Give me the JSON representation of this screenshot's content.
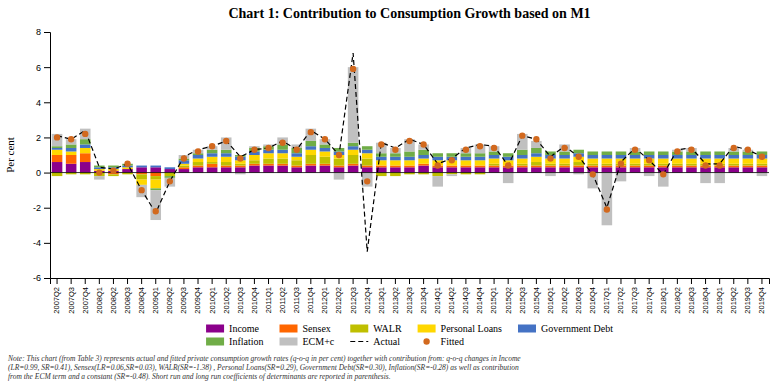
{
  "chart_data": {
    "type": "bar",
    "title": "Chart 1: Contribution to Consumption Growth based on M1",
    "ylabel": "Per cent",
    "ylim": [
      -6,
      8
    ],
    "yticks": [
      -6,
      -4,
      -2,
      0,
      2,
      4,
      6,
      8
    ],
    "stacked": true,
    "grid": false,
    "legend": "bottom",
    "categories": [
      "2007Q2",
      "2007Q3",
      "2007Q4",
      "2008Q1",
      "2008Q2",
      "2008Q3",
      "2008Q4",
      "2009Q1",
      "2009Q2",
      "2009Q3",
      "2009Q4",
      "2010Q1",
      "2010Q2",
      "2010Q3",
      "2010Q4",
      "2011Q1",
      "2011Q2",
      "2011Q3",
      "2011Q4",
      "2012Q1",
      "2012Q2",
      "2012Q3",
      "2012Q4",
      "2013Q1",
      "2013Q2",
      "2013Q3",
      "2013Q4",
      "2014Q1",
      "2014Q2",
      "2014Q3",
      "2014Q4",
      "2015Q1",
      "2015Q2",
      "2015Q3",
      "2015Q4",
      "2016Q1",
      "2016Q2",
      "2016Q3",
      "2016Q4",
      "2017Q1",
      "2017Q2",
      "2017Q3",
      "2017Q4",
      "2018Q1",
      "2018Q2",
      "2018Q3",
      "2018Q4",
      "2019Q1",
      "2019Q2",
      "2019Q3",
      "2019Q4"
    ],
    "series": [
      {
        "name": "Income",
        "type": "bar",
        "color": "#8B008B",
        "values": [
          0.6,
          0.5,
          0.6,
          0.1,
          0.1,
          0.2,
          0.3,
          0.3,
          0.2,
          0.2,
          0.3,
          0.3,
          0.3,
          0.3,
          0.4,
          0.4,
          0.4,
          0.3,
          0.4,
          0.4,
          0.3,
          0.4,
          0.3,
          0.3,
          0.3,
          0.3,
          0.4,
          0.3,
          0.3,
          0.3,
          0.3,
          0.3,
          0.3,
          0.3,
          0.3,
          0.3,
          0.3,
          0.3,
          0.3,
          0.3,
          0.3,
          0.3,
          0.3,
          0.3,
          0.3,
          0.3,
          0.3,
          0.3,
          0.3,
          0.3,
          0.3
        ]
      },
      {
        "name": "Sensex",
        "type": "bar",
        "color": "#FF6600",
        "values": [
          0.4,
          0.5,
          0.5,
          0.0,
          -0.1,
          0.0,
          -0.1,
          -0.2,
          0.0,
          0.1,
          0.1,
          0.2,
          0.1,
          0.1,
          0.1,
          0.1,
          0.1,
          0.1,
          0.1,
          0.1,
          0.1,
          0.1,
          0.1,
          0.1,
          0.1,
          0.1,
          0.1,
          0.1,
          0.1,
          0.1,
          0.1,
          0.1,
          0.1,
          0.1,
          0.1,
          0.1,
          0.1,
          0.1,
          0.1,
          0.1,
          0.1,
          0.1,
          0.1,
          0.1,
          0.1,
          0.1,
          0.1,
          0.1,
          0.1,
          0.1,
          0.1
        ]
      },
      {
        "name": "WALR",
        "type": "bar",
        "color": "#BFBF00",
        "values": [
          -0.2,
          -0.1,
          -0.1,
          -0.2,
          -0.1,
          -0.1,
          -0.3,
          -0.2,
          -0.2,
          0.1,
          0.2,
          0.1,
          0.2,
          0.1,
          0.2,
          0.3,
          0.3,
          0.3,
          0.5,
          0.4,
          0.4,
          0.5,
          0.4,
          -0.2,
          -0.2,
          -0.1,
          -0.1,
          -0.2,
          -0.1,
          -0.1,
          -0.1,
          0.1,
          0.0,
          0.1,
          0.2,
          0.1,
          0.1,
          0.2,
          0.1,
          0.1,
          0.1,
          0.1,
          0.1,
          0.1,
          0.1,
          0.1,
          0.1,
          0.1,
          0.1,
          0.1,
          0.1
        ]
      },
      {
        "name": "Personal Loans",
        "type": "bar",
        "color": "#FFD700",
        "values": [
          0.3,
          0.2,
          0.3,
          0.1,
          0.1,
          0.1,
          -0.3,
          -0.5,
          0.0,
          0.1,
          0.2,
          0.3,
          0.3,
          0.2,
          0.3,
          0.3,
          0.3,
          0.2,
          0.3,
          0.3,
          0.2,
          0.3,
          0.3,
          0.3,
          0.3,
          0.3,
          0.3,
          0.3,
          0.3,
          0.3,
          0.3,
          0.3,
          0.3,
          0.3,
          0.3,
          0.3,
          0.3,
          0.3,
          0.3,
          0.3,
          0.3,
          0.3,
          0.3,
          0.3,
          0.3,
          0.3,
          0.3,
          0.3,
          0.3,
          0.3,
          0.3
        ]
      },
      {
        "name": "Government Debt",
        "type": "bar",
        "color": "#4472C4",
        "values": [
          0.1,
          0.2,
          0.2,
          0.1,
          0.1,
          0.1,
          0.1,
          0.1,
          0.1,
          0.2,
          0.2,
          0.2,
          0.2,
          0.2,
          0.2,
          0.2,
          0.2,
          0.2,
          0.2,
          0.2,
          0.2,
          0.2,
          0.2,
          0.2,
          0.2,
          0.2,
          0.2,
          0.2,
          0.2,
          0.2,
          0.2,
          0.2,
          0.2,
          0.2,
          0.2,
          0.2,
          0.2,
          0.2,
          0.2,
          0.2,
          0.2,
          0.2,
          0.2,
          0.2,
          0.2,
          0.2,
          0.2,
          0.2,
          0.2,
          0.2,
          0.2
        ]
      },
      {
        "name": "Inflation",
        "type": "bar",
        "color": "#70AD47",
        "values": [
          0.1,
          0.2,
          0.3,
          0.1,
          0.1,
          0.1,
          0.0,
          -0.1,
          -0.1,
          0.1,
          0.1,
          0.2,
          0.2,
          0.1,
          0.2,
          0.2,
          0.3,
          0.3,
          0.3,
          0.2,
          0.2,
          0.2,
          0.2,
          0.2,
          0.2,
          0.3,
          0.3,
          0.2,
          0.2,
          0.2,
          0.2,
          0.2,
          0.2,
          0.3,
          0.3,
          0.2,
          0.2,
          0.2,
          0.2,
          0.2,
          0.2,
          0.2,
          0.2,
          0.2,
          0.2,
          0.2,
          0.2,
          0.2,
          0.2,
          0.2,
          0.2
        ]
      },
      {
        "name": "ECM+c",
        "type": "bar",
        "color": "#C0C0C0",
        "values": [
          0.7,
          0.3,
          0.6,
          -0.2,
          0.0,
          0.0,
          -0.7,
          -1.7,
          -0.5,
          0.2,
          0.2,
          0.2,
          0.7,
          -0.1,
          0.1,
          0.1,
          0.4,
          0.2,
          0.7,
          0.3,
          -0.4,
          4.3,
          -0.8,
          0.6,
          0.3,
          0.7,
          0.3,
          -0.6,
          -0.1,
          0.3,
          0.5,
          0.3,
          -0.6,
          0.9,
          0.4,
          -0.2,
          0.4,
          -0.1,
          -0.9,
          -3.0,
          -0.5,
          0.2,
          -0.2,
          -0.8,
          0.1,
          0.2,
          -0.6,
          -0.6,
          0.2,
          0.1,
          -0.2
        ]
      },
      {
        "name": "Actual",
        "type": "line",
        "line_style": "dashed",
        "color": "#000000",
        "values": [
          2.1,
          1.9,
          2.4,
          0.3,
          0.2,
          0.5,
          -1.0,
          -2.3,
          -0.5,
          0.9,
          1.3,
          1.5,
          1.8,
          0.9,
          1.3,
          1.4,
          1.8,
          1.3,
          2.4,
          1.9,
          1.0,
          6.8,
          -4.5,
          1.7,
          1.4,
          1.9,
          1.6,
          0.5,
          0.8,
          1.4,
          1.6,
          1.5,
          0.4,
          2.1,
          1.9,
          0.9,
          1.5,
          0.9,
          -0.1,
          -2.0,
          0.6,
          1.4,
          0.7,
          -0.1,
          1.3,
          1.4,
          0.5,
          0.5,
          1.5,
          1.3,
          0.9
        ]
      },
      {
        "name": "Fitted",
        "type": "scatter",
        "marker": "circle",
        "color": "#D2691E",
        "values": [
          2.0,
          1.9,
          2.2,
          0.0,
          0.1,
          0.5,
          -1.0,
          -2.2,
          -0.5,
          0.8,
          1.2,
          1.5,
          1.8,
          0.8,
          1.3,
          1.4,
          1.7,
          1.3,
          2.3,
          1.9,
          1.0,
          5.9,
          -0.5,
          1.6,
          1.3,
          1.8,
          1.6,
          0.4,
          0.7,
          1.3,
          1.5,
          1.4,
          0.4,
          2.1,
          1.9,
          0.8,
          1.4,
          0.9,
          -0.1,
          -2.1,
          0.5,
          1.3,
          0.7,
          -0.1,
          1.2,
          1.3,
          0.4,
          0.4,
          1.4,
          1.3,
          0.9
        ]
      }
    ],
    "note": "Note: This chart (from Table 3) represents actual and fitted private consumption growth rates (q-o-q in per cent) together with contribution from: q-o-q changes in Income\n(LR=0.99, SR=0.41), Sensex(LR=0.06,SR=0.03), WALR(SR=-1.38) , Personal Loans(SR=0.29), Government Debt(SR=0.30), Inflation(SR=-0.28) as well as contribution\nfrom the ECM term and a constant (SR=-0.48).  Short run and long run coefficients of determinants are reported in parenthesis."
  }
}
